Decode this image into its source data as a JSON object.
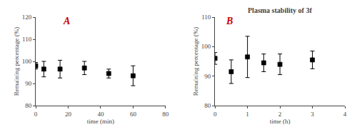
{
  "chart_data": [
    {
      "type": "scatter",
      "xlabel": "time (min)",
      "ylabel": "Remaining percentage (%)",
      "xlim": [
        0,
        80
      ],
      "ylim": [
        80,
        120
      ],
      "xticks": [
        0,
        20,
        40,
        60,
        80
      ],
      "yticks": [
        80,
        90,
        100,
        110,
        120
      ],
      "x": [
        0,
        5,
        15,
        30,
        45,
        60
      ],
      "values": [
        98.0,
        96.5,
        96.5,
        97.0,
        94.5,
        93.5
      ],
      "yerr": [
        1.5,
        3.5,
        4.0,
        3.0,
        2.0,
        4.5
      ],
      "color": "#000000",
      "marker": "square",
      "grid": false,
      "annotations": [
        {
          "text": "A",
          "color": "#cc0000"
        }
      ]
    },
    {
      "type": "scatter",
      "title": "Plasma stability of 3f",
      "xlabel": "time (h)",
      "ylabel": "Remaining percentage (%)",
      "xlim": [
        0,
        4
      ],
      "ylim": [
        80,
        110
      ],
      "xticks": [
        0,
        1,
        2,
        3,
        4
      ],
      "yticks": [
        80,
        90,
        100,
        110
      ],
      "x": [
        0,
        0.5,
        1.0,
        1.5,
        2.0,
        3.0
      ],
      "values": [
        96.0,
        91.5,
        96.5,
        94.5,
        94.0,
        95.5
      ],
      "yerr": [
        2.0,
        4.0,
        7.0,
        3.0,
        3.5,
        3.0
      ],
      "color": "#000000",
      "marker": "square",
      "grid": false,
      "annotations": [
        {
          "text": "B",
          "color": "#cc0000"
        }
      ]
    }
  ]
}
